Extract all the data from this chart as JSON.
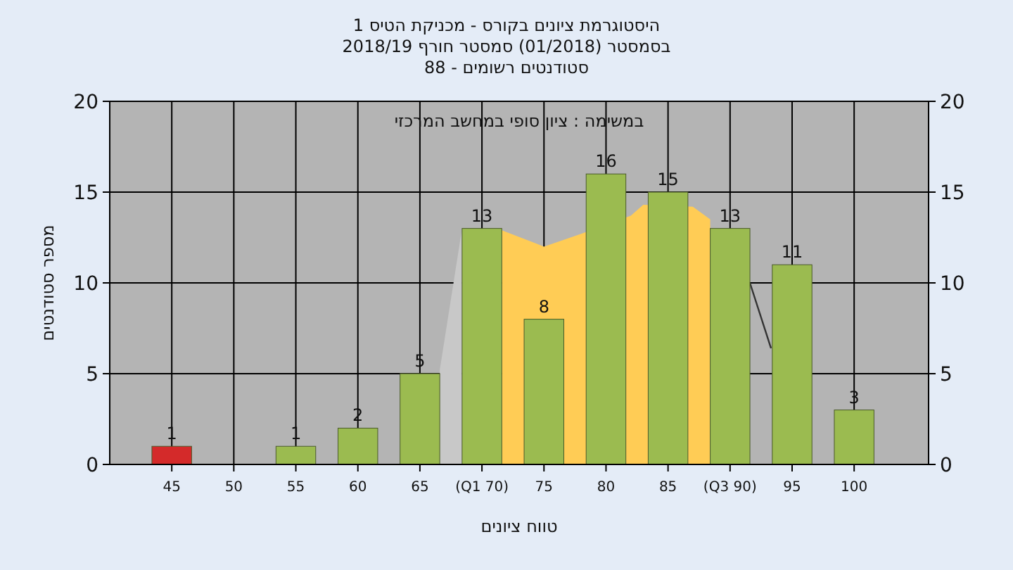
{
  "chart_data": {
    "type": "bar",
    "title": "היסטוגרמת ציונים בקורס - מכניקת הטיס 1",
    "subtitle": "בסמסטר  (01/2018)  סמסטר חורף 2018/19\nסטודנטים רשומים - 88",
    "xlabel": "טווח ציונים",
    "ylabel": "מספר סטודנטים",
    "annotations": [
      "במשימה : ציון סופי במחשב המרכזי"
    ],
    "xlim": [
      40,
      106
    ],
    "xticks": [
      45,
      50,
      55,
      60,
      65,
      {
        "value": 70,
        "label": "(Q1 70)"
      },
      75,
      80,
      85,
      {
        "value": 90,
        "label": "(Q3 90)"
      },
      95,
      100
    ],
    "ylim": [
      0,
      20
    ],
    "yticks": [
      0,
      5,
      10,
      15,
      20
    ],
    "y2lim": [
      0,
      20
    ],
    "y2ticks": [
      0,
      5,
      10,
      15,
      20
    ],
    "grid": true,
    "series": [
      {
        "type": "area",
        "color": "#ffcc55",
        "x": [
          71.6,
          75,
          78,
          82,
          83,
          87,
          88.4
        ],
        "values": [
          12.9,
          12,
          12.7,
          13.7,
          14.3,
          14.2,
          13.5
        ]
      },
      {
        "type": "area",
        "color": "#c8c8c8",
        "x": [
          66.6,
          68.4
        ],
        "values": [
          5.2,
          13
        ]
      },
      {
        "type": "line",
        "color": "#333333",
        "x": [
          91.6,
          93.3
        ],
        "values": [
          10,
          6.4
        ]
      },
      {
        "x": [
          45,
          55,
          60,
          65,
          70,
          75,
          80,
          85,
          90,
          95,
          100
        ],
        "values": [
          1,
          1,
          2,
          5,
          13,
          8,
          16,
          15,
          13,
          11,
          3
        ],
        "value_labels": [
          "1",
          "1",
          "2",
          "5",
          "13",
          "8",
          "16",
          "15",
          "13",
          "11",
          "3"
        ],
        "colors": [
          "#d42a2a",
          "#9bbb50",
          "#9bbb50",
          "#9bbb50",
          "#9bbb50",
          "#9bbb50",
          "#9bbb50",
          "#9bbb50",
          "#9bbb50",
          "#9bbb50",
          "#9bbb50"
        ]
      }
    ]
  }
}
